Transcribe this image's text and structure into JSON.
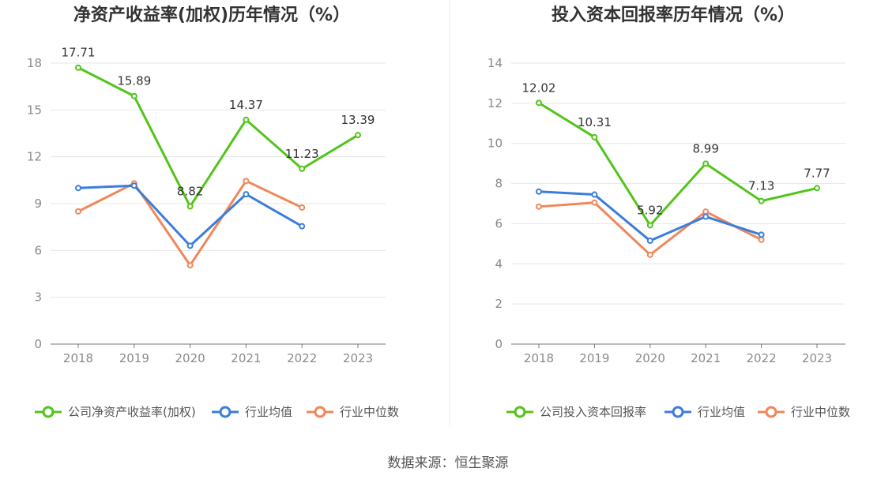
{
  "chart_data": [
    {
      "type": "line",
      "title": "净资产收益率(加权)历年情况（%）",
      "categories": [
        "2018",
        "2019",
        "2020",
        "2021",
        "2022",
        "2023"
      ],
      "yticks": [
        "0",
        "3",
        "6",
        "9",
        "12",
        "15",
        "18"
      ],
      "ylim": [
        0,
        18
      ],
      "grid": true,
      "legend_position": "bottom",
      "series": [
        {
          "name": "公司净资产收益率(加权)",
          "color": "#52c41a",
          "values": [
            17.71,
            15.89,
            8.82,
            14.37,
            11.23,
            13.39
          ],
          "labels": [
            "17.71",
            "15.89",
            "8.82",
            "14.37",
            "11.23",
            "13.39"
          ]
        },
        {
          "name": "行业均值",
          "color": "#3b7ddd",
          "values": [
            10.0,
            10.15,
            6.3,
            9.6,
            7.55,
            null
          ]
        },
        {
          "name": "行业中位数",
          "color": "#f0875a",
          "values": [
            8.5,
            10.3,
            5.05,
            10.45,
            8.75,
            null
          ]
        }
      ]
    },
    {
      "type": "line",
      "title": "投入资本回报率历年情况（%）",
      "categories": [
        "2018",
        "2019",
        "2020",
        "2021",
        "2022",
        "2023"
      ],
      "yticks": [
        "0",
        "2",
        "4",
        "6",
        "8",
        "10",
        "12",
        "14"
      ],
      "ylim": [
        0,
        14
      ],
      "grid": true,
      "legend_position": "bottom",
      "series": [
        {
          "name": "公司投入资本回报率",
          "color": "#52c41a",
          "values": [
            12.02,
            10.31,
            5.92,
            8.99,
            7.13,
            7.77
          ],
          "labels": [
            "12.02",
            "10.31",
            "5.92",
            "8.99",
            "7.13",
            "7.77"
          ]
        },
        {
          "name": "行业均值",
          "color": "#3b7ddd",
          "values": [
            7.6,
            7.45,
            5.15,
            6.35,
            5.45,
            null
          ]
        },
        {
          "name": "行业中位数",
          "color": "#f0875a",
          "values": [
            6.85,
            7.05,
            4.45,
            6.6,
            5.2,
            null
          ]
        }
      ]
    }
  ],
  "footer": {
    "source": "数据来源：恒生聚源"
  }
}
